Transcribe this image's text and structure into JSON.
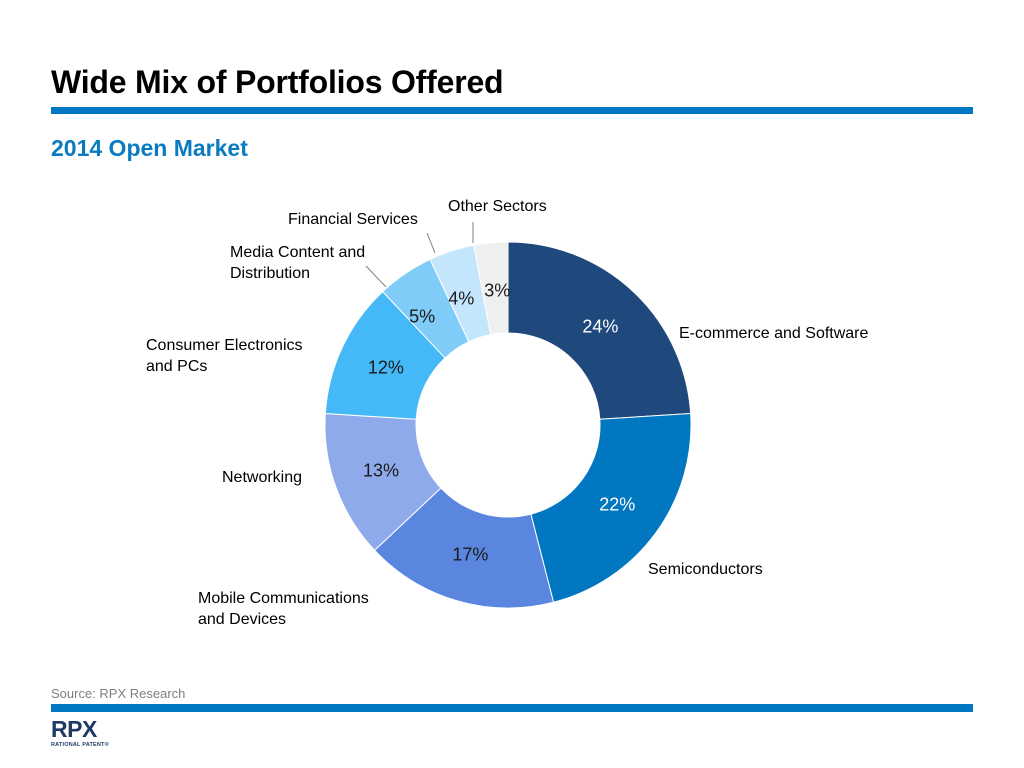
{
  "slide": {
    "title": "Wide Mix of Portfolios Offered",
    "subtitle": "2014 Open Market",
    "source": "Source: RPX Research",
    "accent_color": "#0077c0"
  },
  "logo": {
    "wordmark": "RPX",
    "tagline": "RATIONAL PATENT®"
  },
  "chart_data": {
    "type": "pie",
    "style": "donut",
    "start": "top, clockwise",
    "title": "2014 Open Market",
    "slices": [
      {
        "label": "E-commerce and Software",
        "value": 24,
        "value_label": "24%",
        "color": "#1f497d",
        "value_text_color": "#ffffff"
      },
      {
        "label": "Semiconductors",
        "value": 22,
        "value_label": "22%",
        "color": "#0077c0",
        "value_text_color": "#ffffff"
      },
      {
        "label": "Mobile Communications and Devices",
        "value": 17,
        "value_label": "17%",
        "color": "#5a86e0",
        "value_text_color": "#1a1a1a"
      },
      {
        "label": "Networking",
        "value": 13,
        "value_label": "13%",
        "color": "#8faaea",
        "value_text_color": "#1a1a1a"
      },
      {
        "label": "Consumer Electronics and PCs",
        "value": 12,
        "value_label": "12%",
        "color": "#45b9f7",
        "value_text_color": "#1a1a1a"
      },
      {
        "label": "Media Content and Distribution",
        "value": 5,
        "value_label": "5%",
        "color": "#7fccf9",
        "value_text_color": "#1a1a1a"
      },
      {
        "label": "Financial Services",
        "value": 4,
        "value_label": "4%",
        "color": "#c4e6fc",
        "value_text_color": "#1a1a1a"
      },
      {
        "label": "Other Sectors",
        "value": 3,
        "value_label": "3%",
        "color": "#efefef",
        "value_text_color": "#1a1a1a"
      }
    ]
  }
}
